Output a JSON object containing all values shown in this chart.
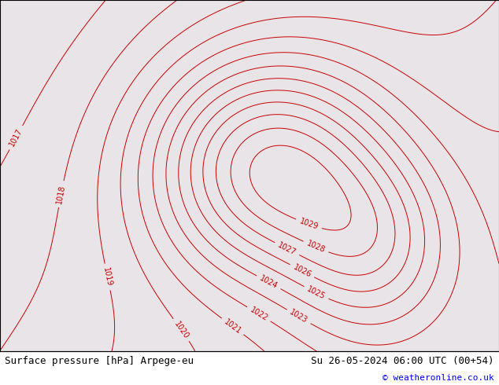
{
  "title_left": "Surface pressure [hPa] Arpege-eu",
  "title_right": "Su 26-05-2024 06:00 UTC (00+54)",
  "copyright": "© weatheronline.co.uk",
  "bg_color": "#ffffff",
  "ocean_color": "#e8e4e8",
  "land_color": "#c8e8b0",
  "land_color2": "#c8c8b8",
  "shadow_color": "#d0d0c0",
  "contour_color_red": "#cc0000",
  "contour_color_black": "#000000",
  "contour_color_blue": "#0000cc",
  "figsize": [
    6.34,
    4.9
  ],
  "dpi": 100,
  "font_size_footer": 9,
  "font_size_copyright": 8,
  "lon_min": -8.0,
  "lon_max": 35.0,
  "lat_min": 53.0,
  "lat_max": 72.0
}
